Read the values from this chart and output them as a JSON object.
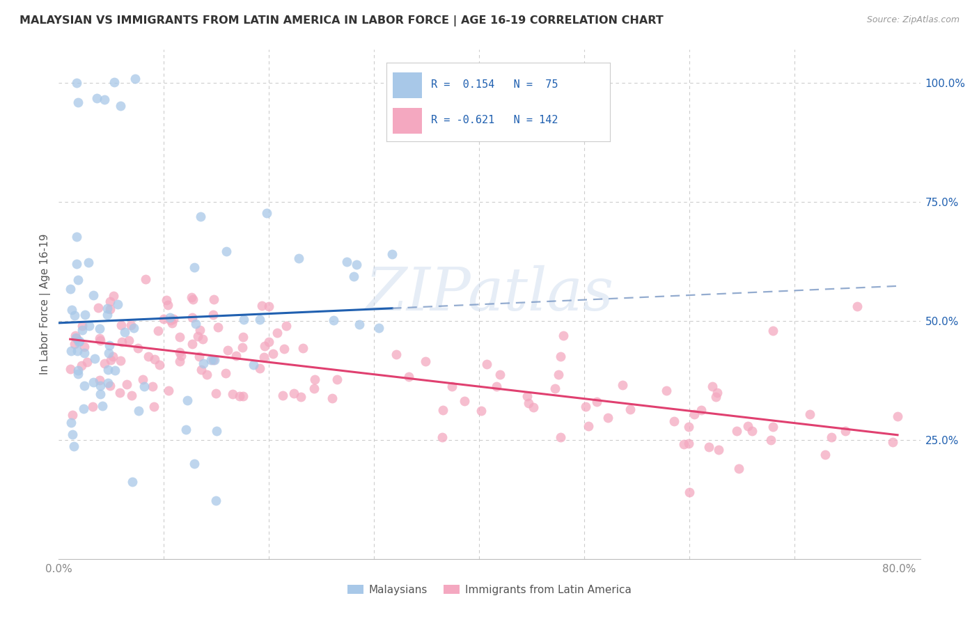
{
  "title": "MALAYSIAN VS IMMIGRANTS FROM LATIN AMERICA IN LABOR FORCE | AGE 16-19 CORRELATION CHART",
  "source": "Source: ZipAtlas.com",
  "ylabel": "In Labor Force | Age 16-19",
  "xlim": [
    0.0,
    0.82
  ],
  "ylim": [
    0.0,
    1.07
  ],
  "xticks": [
    0.0,
    0.1,
    0.2,
    0.3,
    0.4,
    0.5,
    0.6,
    0.7,
    0.8
  ],
  "xticklabels": [
    "0.0%",
    "",
    "",
    "",
    "",
    "",
    "",
    "",
    "80.0%"
  ],
  "yticks_right": [
    0.25,
    0.5,
    0.75,
    1.0
  ],
  "ytick_right_labels": [
    "25.0%",
    "50.0%",
    "75.0%",
    "100.0%"
  ],
  "blue_color": "#a8c8e8",
  "pink_color": "#f4a8c0",
  "blue_line_color": "#2060b0",
  "pink_line_color": "#e04070",
  "blue_dash_color": "#7090c0",
  "blue_R": 0.154,
  "blue_N": 75,
  "pink_R": -0.621,
  "pink_N": 142,
  "legend_label_blue": "Malaysians",
  "legend_label_pink": "Immigrants from Latin America",
  "watermark": "ZIPatlas",
  "grid_color": "#cccccc",
  "title_color": "#333333",
  "source_color": "#999999",
  "tick_color": "#888888",
  "ylabel_color": "#555555",
  "right_tick_color": "#2060b0"
}
